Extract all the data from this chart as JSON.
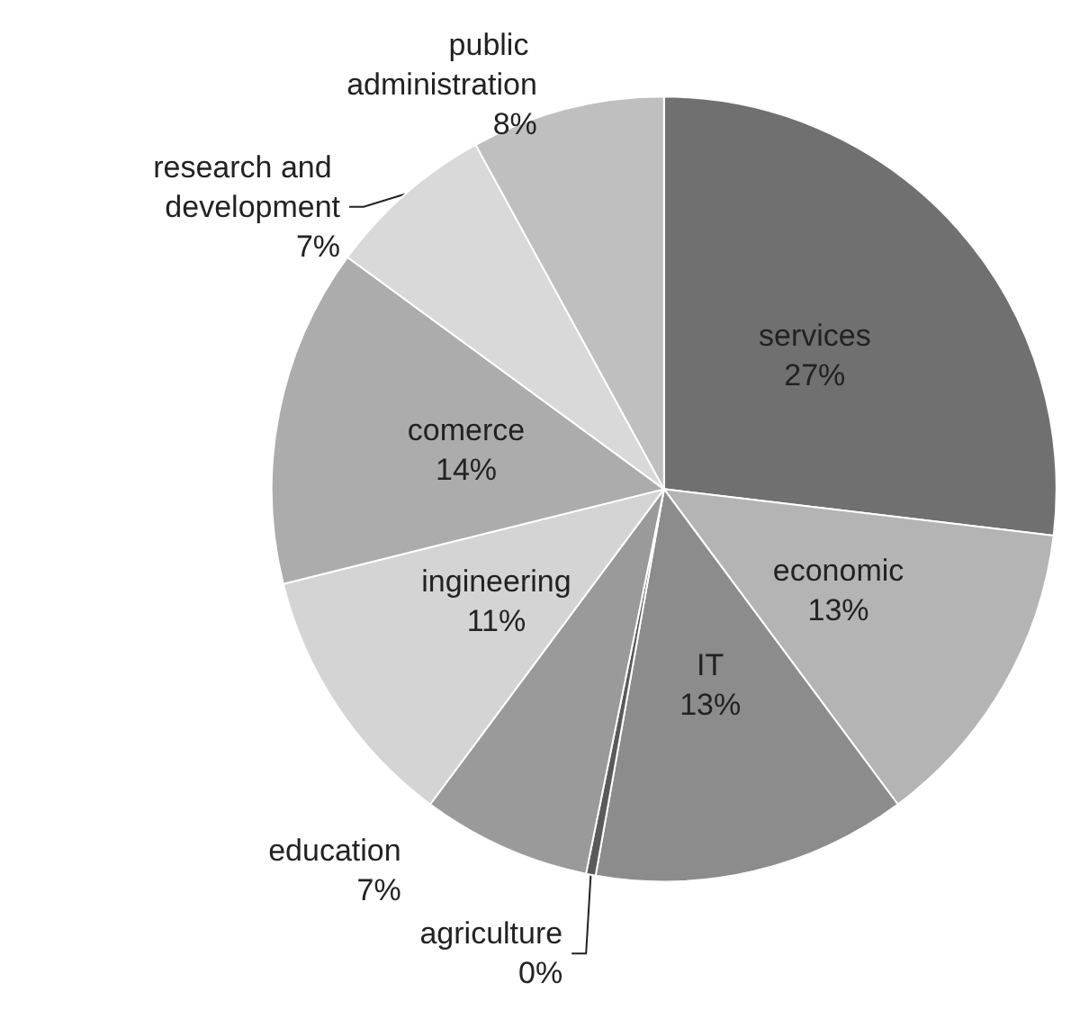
{
  "chart_data": {
    "type": "pie",
    "categories": [
      "services",
      "economic",
      "IT",
      "agriculture",
      "education",
      "ingineering",
      "comerce",
      "research and development",
      "public administration"
    ],
    "values": [
      27,
      13,
      13,
      0.4,
      7,
      11,
      14,
      7,
      8
    ],
    "value_labels": [
      "27%",
      "13%",
      "13%",
      "0%",
      "7%",
      "11%",
      "14%",
      "7%",
      "8%"
    ],
    "colors": [
      "#707070",
      "#b4b4b4",
      "#8c8c8c",
      "#5a5a5a",
      "#9a9a9a",
      "#d4d4d4",
      "#acacac",
      "#d9d9d9",
      "#bfbfbf"
    ]
  }
}
